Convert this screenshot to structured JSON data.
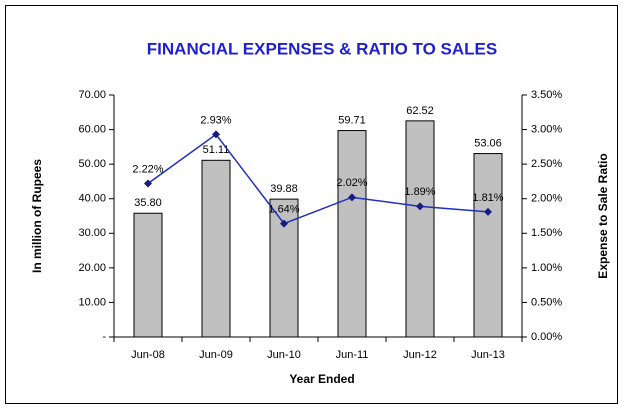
{
  "chart_data": {
    "type": "bar-line",
    "title": "FINANCIAL EXPENSES & RATIO TO SALES",
    "x_label": "Year Ended",
    "y_label": "In million of Rupees",
    "y2_label": "Expense to Sale Ratio",
    "categories": [
      "Jun-08",
      "Jun-09",
      "Jun-10",
      "Jun-11",
      "Jun-12",
      "Jun-13"
    ],
    "series": [
      {
        "type": "bar",
        "color": "#c0c0c0",
        "values": [
          35.8,
          51.11,
          39.88,
          59.71,
          62.52,
          53.06
        ],
        "value_labels": [
          "35.80",
          "51.11",
          "39.88",
          "59.71",
          "62.52",
          "53.06"
        ]
      },
      {
        "type": "line",
        "axis": "y2",
        "color": "#1f2fc0",
        "values": [
          2.22,
          2.93,
          1.64,
          2.02,
          1.89,
          1.81
        ],
        "value_labels": [
          "2.22%",
          "2.93%",
          "1.64%",
          "2.02%",
          "1.89%",
          "1.81%"
        ]
      }
    ],
    "ylim": [
      0,
      70
    ],
    "yticks": [
      {
        "value": 0,
        "label": "-"
      },
      {
        "value": 10,
        "label": "10.00"
      },
      {
        "value": 20,
        "label": "20.00"
      },
      {
        "value": 30,
        "label": "30.00"
      },
      {
        "value": 40,
        "label": "40.00"
      },
      {
        "value": 50,
        "label": "50.00"
      },
      {
        "value": 60,
        "label": "60.00"
      },
      {
        "value": 70,
        "label": "70.00"
      }
    ],
    "y2lim": [
      0,
      3.5
    ],
    "y2ticks": [
      {
        "value": 0,
        "label": "0.00%"
      },
      {
        "value": 0.5,
        "label": "0.50%"
      },
      {
        "value": 1,
        "label": "1.00%"
      },
      {
        "value": 1.5,
        "label": "1.50%"
      },
      {
        "value": 2,
        "label": "2.00%"
      },
      {
        "value": 2.5,
        "label": "2.50%"
      },
      {
        "value": 3,
        "label": "3.00%"
      },
      {
        "value": 3.5,
        "label": "3.50%"
      }
    ],
    "grid": false
  }
}
